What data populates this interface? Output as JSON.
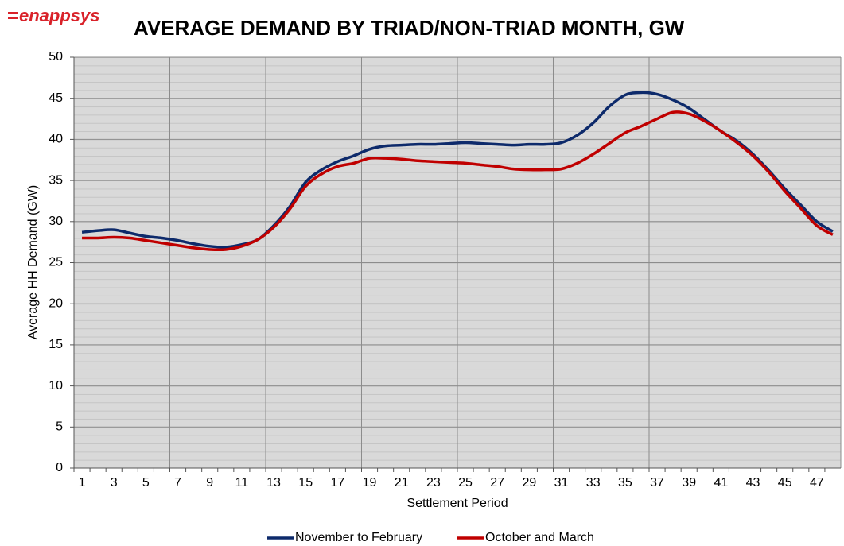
{
  "brand": "enappsys",
  "chart_data": {
    "type": "line",
    "title": "AVERAGE DEMAND BY TRIAD/NON-TRIAD MONTH, GW",
    "x_label": "Settlement Period",
    "y_label": "Average HH Demand (GW)",
    "categories": [
      "1",
      null,
      "3",
      null,
      "5",
      null,
      "7",
      null,
      "9",
      null,
      "11",
      null,
      "13",
      null,
      "15",
      null,
      "17",
      null,
      "19",
      null,
      "21",
      null,
      "23",
      null,
      "25",
      null,
      "27",
      null,
      "29",
      null,
      "31",
      null,
      "33",
      null,
      "35",
      null,
      "37",
      null,
      "39",
      null,
      "41",
      null,
      "43",
      null,
      "45",
      null,
      "47",
      null
    ],
    "series": [
      {
        "name": "November to February",
        "color": "#0d2a6b",
        "values": [
          28.7,
          28.9,
          29.0,
          28.6,
          28.2,
          28.0,
          27.7,
          27.3,
          27.0,
          26.9,
          27.2,
          27.8,
          29.5,
          31.8,
          34.8,
          36.3,
          37.3,
          38.0,
          38.8,
          39.2,
          39.3,
          39.4,
          39.4,
          39.5,
          39.6,
          39.5,
          39.4,
          39.3,
          39.4,
          39.4,
          39.6,
          40.5,
          42.0,
          44.0,
          45.4,
          45.7,
          45.5,
          44.8,
          43.8,
          42.4,
          41.0,
          39.8,
          38.2,
          36.2,
          34.0,
          32.0,
          30.0,
          28.8
        ]
      },
      {
        "name": "October and March",
        "color": "#c00000",
        "values": [
          28.0,
          28.0,
          28.1,
          28.0,
          27.7,
          27.4,
          27.1,
          26.8,
          26.6,
          26.6,
          27.0,
          27.8,
          29.3,
          31.5,
          34.3,
          35.8,
          36.7,
          37.1,
          37.7,
          37.7,
          37.6,
          37.4,
          37.3,
          37.2,
          37.1,
          36.9,
          36.7,
          36.4,
          36.3,
          36.3,
          36.4,
          37.1,
          38.2,
          39.5,
          40.8,
          41.6,
          42.5,
          43.3,
          43.1,
          42.2,
          41.0,
          39.6,
          38.0,
          36.0,
          33.7,
          31.6,
          29.5,
          28.4
        ]
      }
    ],
    "ylim": [
      0,
      50
    ],
    "yticks": [
      0,
      5,
      10,
      15,
      20,
      25,
      30,
      35,
      40,
      45,
      50
    ],
    "grid": true,
    "legend": "bottom"
  }
}
